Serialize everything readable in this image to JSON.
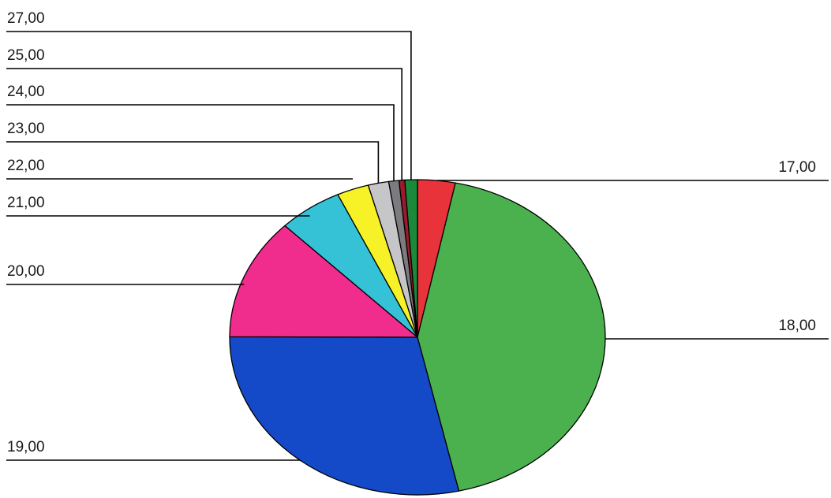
{
  "chart_data": {
    "type": "pie",
    "title": "",
    "slices": [
      {
        "label": "17,00",
        "value": 3.3,
        "color": "#e8333a"
      },
      {
        "label": "18,00",
        "value": 44.0,
        "color": "#4bb14e"
      },
      {
        "label": "19,00",
        "value": 29.1,
        "color": "#1449c8"
      },
      {
        "label": "20,00",
        "value": 12.7,
        "color": "#f02c8c"
      },
      {
        "label": "21,00",
        "value": 5.6,
        "color": "#35c2d6"
      },
      {
        "label": "22,00",
        "value": 2.8,
        "color": "#f7f227"
      },
      {
        "label": "23,00",
        "value": 1.8,
        "color": "#c6c6c8"
      },
      {
        "label": "24,00",
        "value": 0.9,
        "color": "#7c7c80"
      },
      {
        "label": "25,00",
        "value": 0.5,
        "color": "#9b1b2c"
      },
      {
        "label": "27,00",
        "value": 1.1,
        "color": "#1a8a3a"
      }
    ],
    "legend": "none"
  }
}
